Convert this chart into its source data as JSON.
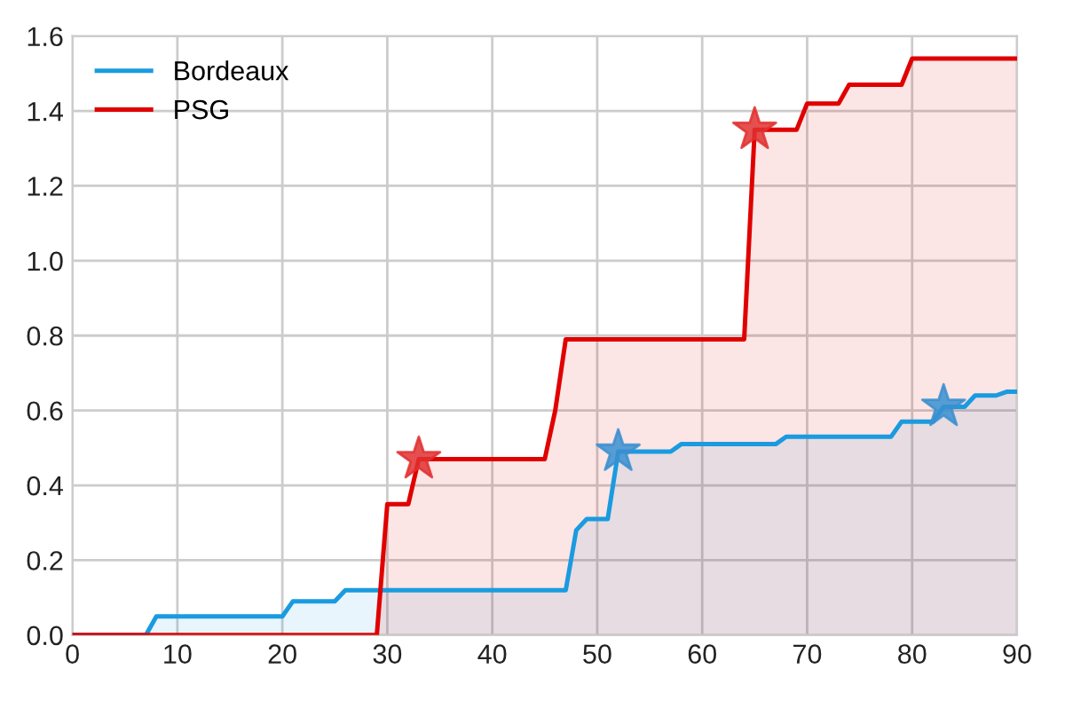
{
  "chart_data": {
    "type": "area",
    "xlim": [
      0,
      90
    ],
    "ylim": [
      0,
      1.6
    ],
    "xticks": [
      0,
      10,
      20,
      30,
      40,
      50,
      60,
      70,
      80,
      90
    ],
    "yticks": [
      {
        "value": 0,
        "label": "0.0"
      },
      0.2,
      0.4,
      0.6,
      0.8,
      {
        "value": 1,
        "label": "1.0"
      },
      1.2,
      1.4,
      1.6
    ],
    "grid": true,
    "legend": "top left",
    "series": [
      {
        "name": "Bordeaux",
        "color": "#1a9be0",
        "x": [
          0,
          7,
          8,
          20,
          21,
          25,
          26,
          47,
          48,
          49,
          51,
          52,
          57,
          58,
          67,
          68,
          78,
          79,
          82,
          83,
          85,
          86,
          88,
          89,
          90
        ],
        "values": [
          0,
          0,
          0.05,
          0.05,
          0.09,
          0.09,
          0.12,
          0.12,
          0.28,
          0.31,
          0.31,
          0.49,
          0.49,
          0.51,
          0.51,
          0.53,
          0.53,
          0.57,
          0.57,
          0.61,
          0.61,
          0.64,
          0.64,
          0.65,
          0.65
        ]
      },
      {
        "name": "PSG",
        "color": "#e00000",
        "x": [
          0,
          29,
          30,
          32,
          33,
          45,
          46,
          47,
          64,
          65,
          69,
          70,
          73,
          74,
          79,
          80,
          90
        ],
        "values": [
          0,
          0,
          0.35,
          0.35,
          0.47,
          0.47,
          0.6,
          0.79,
          0.79,
          1.35,
          1.35,
          1.42,
          1.42,
          1.47,
          1.47,
          1.54,
          1.54
        ]
      },
      {
        "color": "#3a8fd0",
        "type": "scatter",
        "marker": "star",
        "x": [
          52,
          83
        ],
        "values": [
          0.49,
          0.61
        ]
      },
      {
        "color": "#e03030",
        "type": "scatter",
        "marker": "star",
        "x": [
          33,
          65
        ],
        "values": [
          0.47,
          1.35
        ]
      }
    ]
  }
}
